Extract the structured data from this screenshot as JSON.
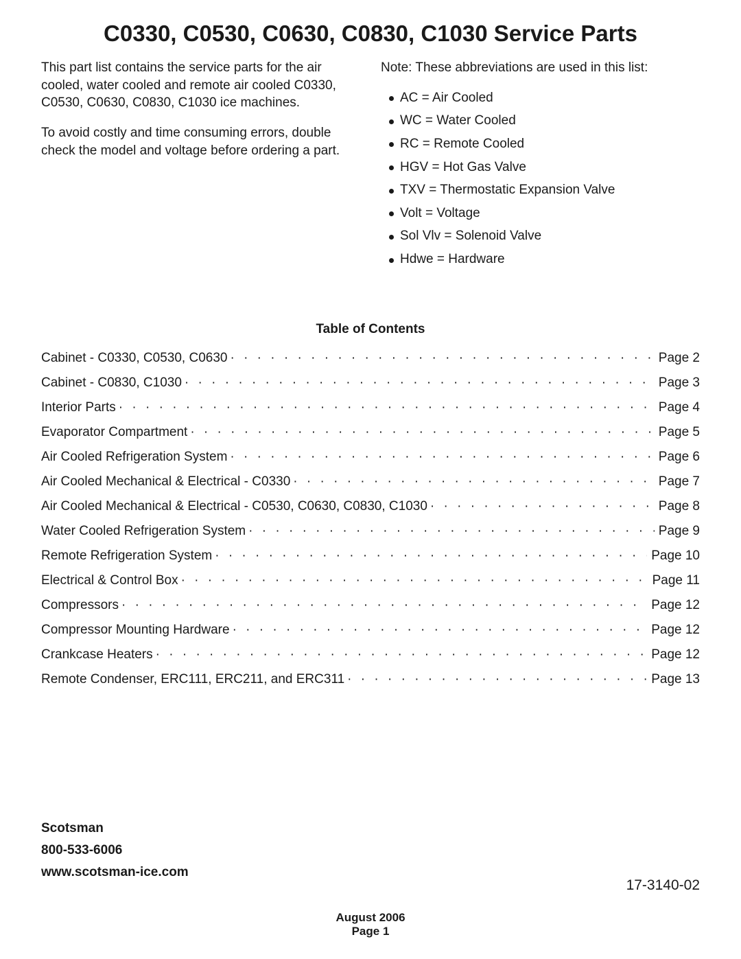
{
  "title": "C0330, C0530, C0630, C0830, C1030 Service Parts",
  "intro": {
    "p1": "This part list contains the service parts for the air cooled, water cooled and remote air cooled C0330, C0530, C0630, C0830, C1030 ice machines.",
    "p2": "To avoid costly and time consuming errors, double check the model and voltage before ordering a part."
  },
  "abbr_heading": "Note: These abbreviations are used in this list:",
  "abbreviations": [
    "AC = Air Cooled",
    "WC = Water Cooled",
    "RC = Remote Cooled",
    "HGV = Hot Gas Valve",
    "TXV = Thermostatic Expansion Valve",
    "Volt = Voltage",
    "Sol Vlv = Solenoid Valve",
    "Hdwe = Hardware"
  ],
  "toc_heading": "Table of Contents",
  "toc": [
    {
      "label": "Cabinet - C0330, C0530, C0630",
      "page": "Page 2"
    },
    {
      "label": "Cabinet - C0830, C1030",
      "page": "Page 3"
    },
    {
      "label": "Interior Parts",
      "page": "Page 4"
    },
    {
      "label": "Evaporator Compartment",
      "page": "Page 5"
    },
    {
      "label": "Air Cooled Refrigeration System",
      "page": "Page 6"
    },
    {
      "label": "Air Cooled Mechanical & Electrical - C0330",
      "page": "Page 7"
    },
    {
      "label": "Air Cooled Mechanical & Electrical - C0530, C0630, C0830, C1030",
      "page": "Page 8"
    },
    {
      "label": "Water Cooled Refrigeration System",
      "page": "Page 9"
    },
    {
      "label": "Remote Refrigeration System",
      "page": "Page 10"
    },
    {
      "label": "Electrical & Control Box",
      "page": "Page 11"
    },
    {
      "label": "Compressors",
      "page": "Page 12"
    },
    {
      "label": "Compressor Mounting Hardware",
      "page": "Page 12"
    },
    {
      "label": "Crankcase Heaters",
      "page": "Page 12"
    },
    {
      "label": "Remote Condenser, ERC111, ERC211, and ERC311",
      "page": "Page 13"
    }
  ],
  "footer": {
    "company": "Scotsman",
    "phone": "800-533-6006",
    "website": "www.scotsman-ice.com"
  },
  "doc_id": "17-3140-02",
  "page_footer": {
    "date": "August 2006",
    "page": "Page 1"
  }
}
